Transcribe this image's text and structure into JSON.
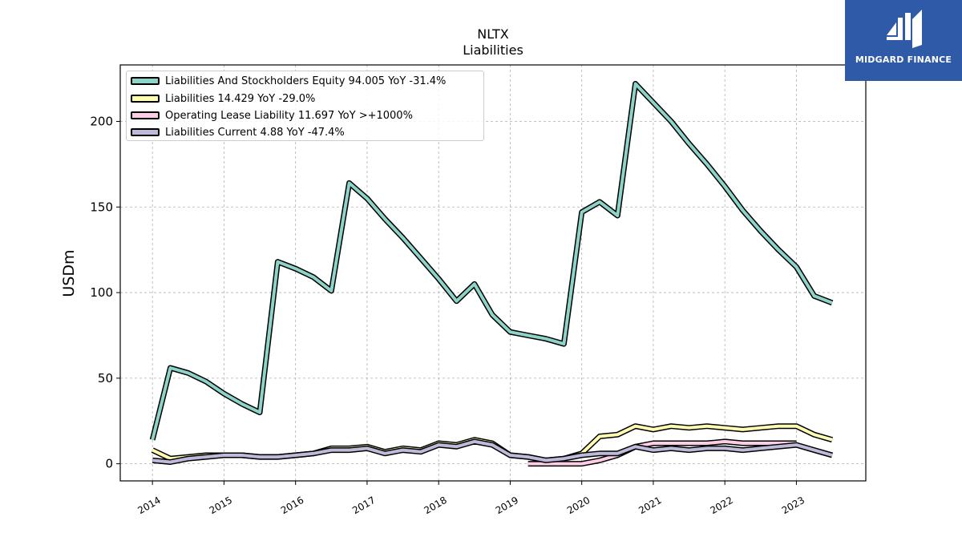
{
  "brand": {
    "name": "MIDGARD FINANCE",
    "color": "#2f5aa8"
  },
  "chart_data": {
    "type": "line",
    "title": "NLTX",
    "subtitle": "Liabilities",
    "xlabel": "",
    "ylabel": "USDm",
    "ylim": [
      -10,
      233
    ],
    "y_ticks": [
      0,
      50,
      100,
      150,
      200
    ],
    "x_tick_labels": [
      "2014",
      "2015",
      "2016",
      "2017",
      "2018",
      "2019",
      "2020",
      "2021",
      "2022",
      "2023"
    ],
    "xlim": [
      2013.55,
      2023.97
    ],
    "grid": true,
    "legend_position": "top-left",
    "series": [
      {
        "name": "Liabilities And Stockholders Equity",
        "label": "Liabilities And Stockholders Equity  94.005 YoY -31.4%",
        "color": "#8dd3c7",
        "x": [
          2014.0,
          2014.25,
          2014.5,
          2014.75,
          2015.0,
          2015.25,
          2015.5,
          2015.75,
          2016.0,
          2016.25,
          2016.5,
          2016.75,
          2017.0,
          2017.25,
          2017.5,
          2017.75,
          2018.0,
          2018.25,
          2018.5,
          2018.75,
          2019.0,
          2019.25,
          2019.5,
          2019.75,
          2020.0,
          2020.25,
          2020.5,
          2020.75,
          2021.0,
          2021.25,
          2021.5,
          2021.75,
          2022.0,
          2022.25,
          2022.5,
          2022.75,
          2023.0,
          2023.25,
          2023.5
        ],
        "values": [
          14,
          56,
          53,
          48,
          41,
          35,
          30,
          118,
          114,
          109,
          101,
          164,
          155,
          143,
          132,
          120,
          108,
          95,
          105,
          87,
          77,
          75,
          73,
          70,
          147,
          153,
          145,
          222,
          211,
          200,
          187,
          175,
          162,
          148,
          136,
          125,
          115,
          98,
          94
        ]
      },
      {
        "name": "Liabilities",
        "label": "Liabilities  14.429 YoY -29.0%",
        "color": "#ffffb3",
        "x": [
          2014.0,
          2014.25,
          2014.5,
          2014.75,
          2015.0,
          2015.25,
          2015.5,
          2015.75,
          2016.0,
          2016.25,
          2016.5,
          2016.75,
          2017.0,
          2017.25,
          2017.5,
          2017.75,
          2018.0,
          2018.25,
          2018.5,
          2018.75,
          2019.0,
          2019.25,
          2019.5,
          2019.75,
          2020.0,
          2020.25,
          2020.5,
          2020.75,
          2021.0,
          2021.25,
          2021.5,
          2021.75,
          2022.0,
          2022.25,
          2022.5,
          2022.75,
          2023.0,
          2023.25,
          2023.5
        ],
        "values": [
          8,
          3,
          4,
          5,
          5,
          5,
          4,
          4,
          5,
          6,
          9,
          9,
          10,
          7,
          9,
          8,
          12,
          11,
          14,
          12,
          5,
          4,
          2,
          3,
          6,
          16,
          17,
          22,
          20,
          22,
          21,
          22,
          21,
          20,
          21,
          22,
          22,
          17,
          14
        ]
      },
      {
        "name": "Operating Lease Liability",
        "label": "Operating Lease Liability  11.697 YoY >+1000%",
        "color": "#fccde5",
        "x": [
          2019.25,
          2019.5,
          2019.75,
          2020.0,
          2020.25,
          2020.5,
          2020.75,
          2021.0,
          2021.25,
          2021.5,
          2021.75,
          2022.0,
          2022.25,
          2022.5,
          2022.75,
          2023.0
        ],
        "values": [
          0,
          0,
          0,
          0,
          2,
          5,
          10,
          12,
          12,
          12,
          12,
          13,
          12,
          12,
          12,
          12
        ]
      },
      {
        "name": "Liabilities Current",
        "label": "Liabilities Current  4.88 YoY -47.4%",
        "color": "#bebada",
        "x": [
          2014.0,
          2014.25,
          2014.5,
          2014.75,
          2015.0,
          2015.25,
          2015.5,
          2015.75,
          2016.0,
          2016.25,
          2016.5,
          2016.75,
          2017.0,
          2017.25,
          2017.5,
          2017.75,
          2018.0,
          2018.25,
          2018.5,
          2018.75,
          2019.0,
          2019.25,
          2019.5,
          2019.75,
          2020.0,
          2020.25,
          2020.5,
          2020.75,
          2021.0,
          2021.25,
          2021.5,
          2021.75,
          2022.0,
          2022.25,
          2022.5,
          2022.75,
          2023.0,
          2023.25,
          2023.5
        ],
        "values": [
          2,
          1,
          3,
          4,
          5,
          5,
          4,
          4,
          5,
          6,
          8,
          8,
          9,
          6,
          8,
          7,
          11,
          10,
          13,
          11,
          5,
          4,
          2,
          3,
          5,
          6,
          6,
          10,
          8,
          9,
          8,
          9,
          9,
          8,
          9,
          10,
          11,
          8,
          5
        ]
      }
    ]
  }
}
